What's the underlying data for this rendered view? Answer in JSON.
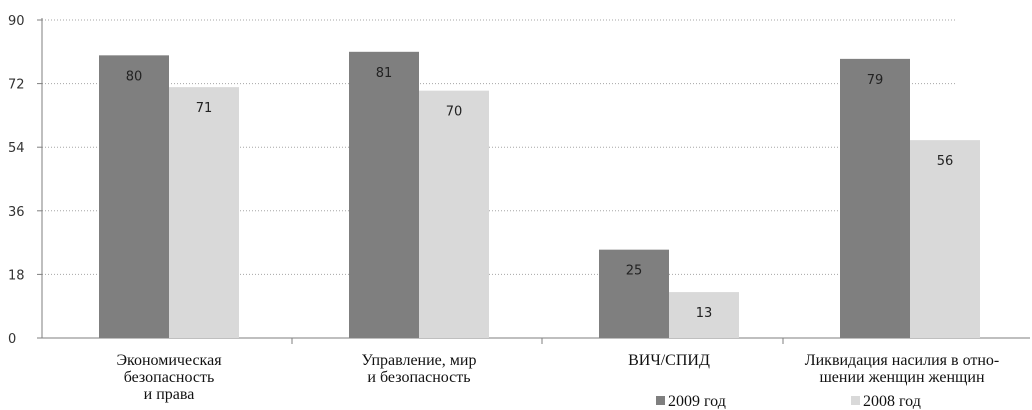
{
  "chart_data": {
    "type": "bar",
    "categories": [
      [
        "Экономическая",
        "безопасность",
        "и права"
      ],
      [
        "Управление, мир",
        "и безопасность"
      ],
      [
        "ВИЧ/СПИД"
      ],
      [
        "Ликвидация насилия в отно-",
        "шении женщин женщин"
      ]
    ],
    "series": [
      {
        "name": "2009 год",
        "values": [
          80,
          81,
          25,
          79
        ],
        "color": "#7f7f7f"
      },
      {
        "name": "2008 год",
        "values": [
          71,
          70,
          13,
          56
        ],
        "color": "#d9d9d9"
      }
    ],
    "yticks": [
      "0",
      "18",
      "36",
      "54",
      "72",
      "90"
    ],
    "ylim": [
      0,
      90
    ],
    "grid": "dotted horizontal",
    "legend_position": "bottom-right",
    "label_colors": {
      "axis": "#7f7f7f",
      "grid": "#a6a6a6"
    }
  }
}
